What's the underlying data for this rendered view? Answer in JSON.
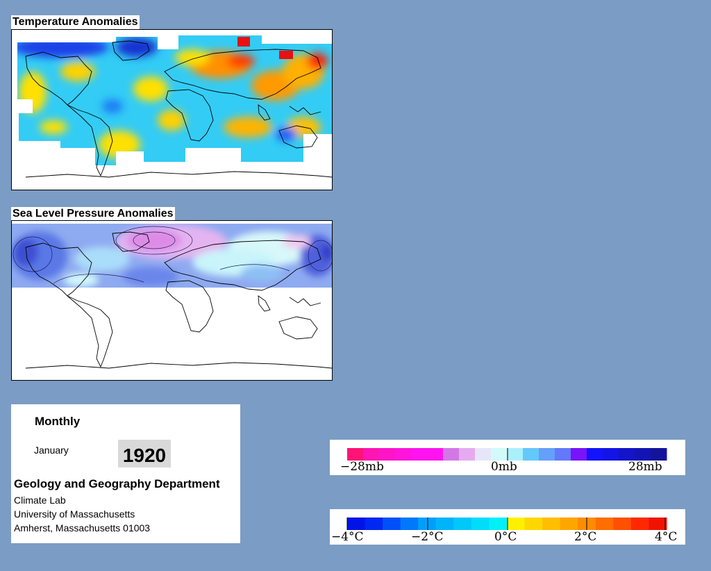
{
  "temperature_map": {
    "title": "Temperature Anomalies"
  },
  "pressure_map": {
    "title": "Sea Level Pressure Anomalies"
  },
  "info": {
    "period": "Monthly",
    "month": "January",
    "year": "1920",
    "department": "Geology and Geography Department",
    "lab": "Climate Lab",
    "university": "University of Massachusetts",
    "address": "Amherst, Massachusetts 01003"
  },
  "pressure_legend": {
    "tick_labels": [
      "−28mb",
      "0mb",
      "28mb"
    ],
    "colors": [
      "#ff1475",
      "#ff14b4",
      "#ff14c8",
      "#ff14dc",
      "#ff14f0",
      "#ff14f0",
      "#d278e6",
      "#e6aaf0",
      "#e6e6fa",
      "#d2fafa",
      "#aaf0fa",
      "#64c8fa",
      "#64a0fa",
      "#6478fa",
      "#7814fa",
      "#1414fa",
      "#1414e6",
      "#1414c8",
      "#1414b4",
      "#14149b"
    ]
  },
  "temperature_legend": {
    "tick_labels": [
      "−4°C",
      "−2°C",
      "0°C",
      "2°C",
      "4°C"
    ],
    "colors": [
      "#0014e6",
      "#0028f0",
      "#0050fa",
      "#0078fa",
      "#00a0fa",
      "#00b4fa",
      "#00c8fa",
      "#00dcfa",
      "#00f0fa",
      "#fff000",
      "#ffd700",
      "#ffbe00",
      "#ffa500",
      "#ff8c00",
      "#ff6e00",
      "#ff5000",
      "#ff2800",
      "#f01400"
    ]
  }
}
